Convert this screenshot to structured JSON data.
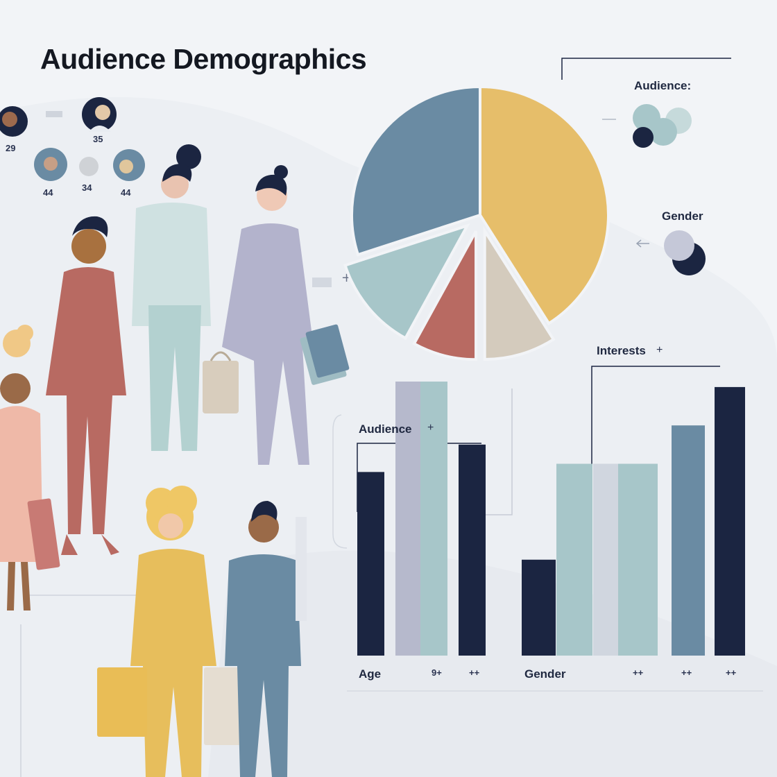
{
  "title": "Audience Demographics",
  "avatars": [
    {
      "label": "29"
    },
    {
      "label": "35"
    },
    {
      "label": "44"
    },
    {
      "label": "34"
    },
    {
      "label": "44"
    }
  ],
  "legend": {
    "audience_label": "Audience:",
    "gender_label": "Gender"
  },
  "charts": {
    "audience_label": "Audience",
    "audience_plus": "+",
    "interests_label": "Interests",
    "interests_plus": "+",
    "age_label": "Age",
    "gender_label": "Gender",
    "tick_labels": [
      "9+",
      "++",
      "++",
      "++",
      "++"
    ]
  },
  "colors": {
    "navy": "#1b2541",
    "lavender": "#b6b9cc",
    "light_teal": "#a7c6c9",
    "slate_blue": "#6a8ba3",
    "mustard": "#e6be6a",
    "beige": "#d4cbbd",
    "terracotta": "#b86a62"
  },
  "chart_data": [
    {
      "type": "pie",
      "slices": [
        {
          "value": 41,
          "color": "#e6be6a"
        },
        {
          "value": 9,
          "color": "#d4cbbd"
        },
        {
          "value": 8,
          "color": "#b86a62"
        },
        {
          "value": 12,
          "color": "#a7c6c9"
        },
        {
          "value": 30,
          "color": "#6a8ba3"
        }
      ],
      "exploded_slices": [
        1,
        2,
        3
      ]
    },
    {
      "type": "bar",
      "xlabel": "Age",
      "values": [
        67,
        100,
        100,
        77
      ],
      "colors": [
        "#1b2541",
        "#b6b9cc",
        "#a7c6c9",
        "#1b2541"
      ]
    },
    {
      "type": "bar",
      "xlabel": "Gender",
      "values": [
        35,
        70,
        70,
        70,
        84,
        98
      ],
      "colors": [
        "#1b2541",
        "#a7c6c9",
        "#d0d6df",
        "#a7c6c9",
        "#6a8ba3",
        "#1b2541"
      ]
    }
  ]
}
